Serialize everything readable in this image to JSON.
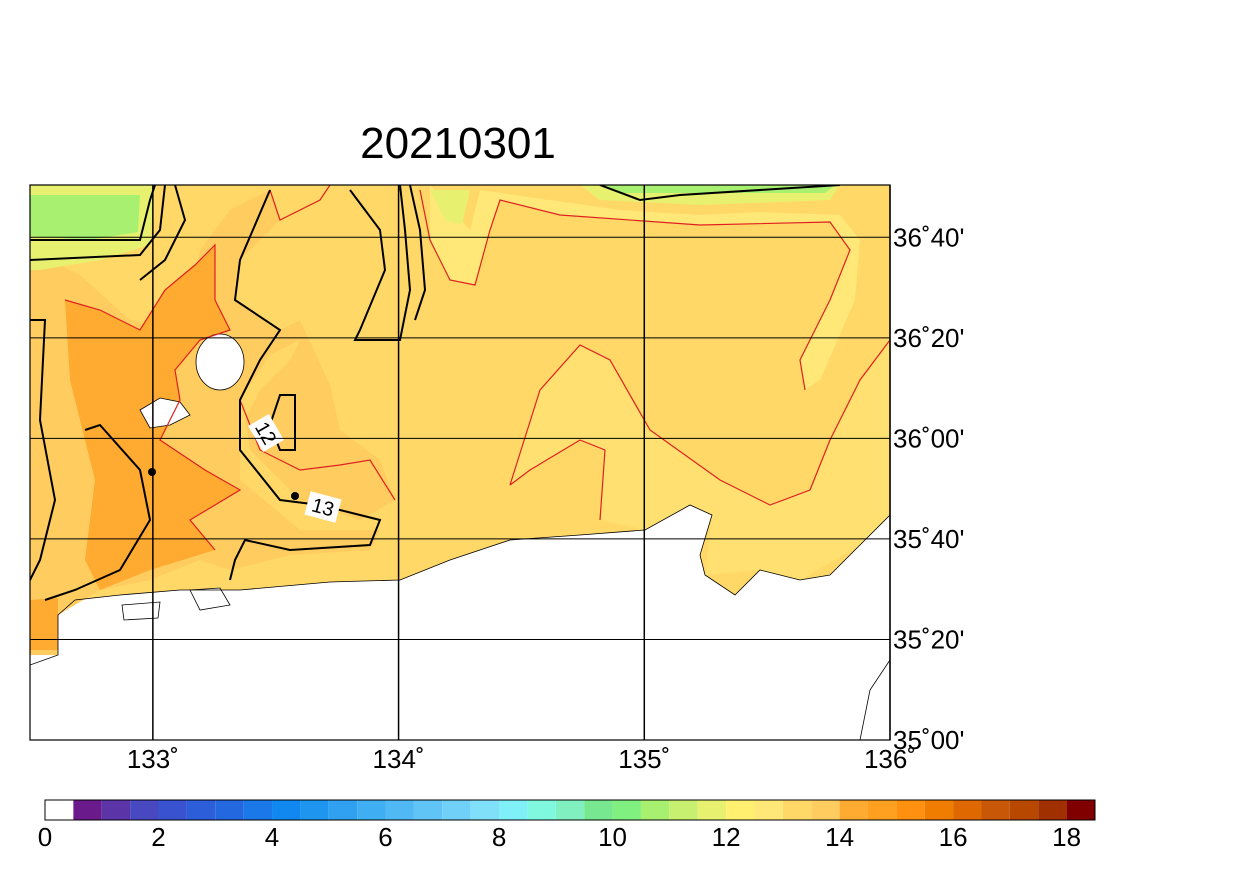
{
  "title": "20210301",
  "map": {
    "lon_range": [
      132.5,
      136
    ],
    "lat_range": [
      35,
      36.84
    ],
    "lon_ticks": [
      {
        "value": 133,
        "label": "133˚"
      },
      {
        "value": 134,
        "label": "134˚"
      },
      {
        "value": 135,
        "label": "135˚"
      },
      {
        "value": 136,
        "label": "136˚"
      }
    ],
    "lat_ticks": [
      {
        "value": 36.6667,
        "label": "36˚40'"
      },
      {
        "value": 36.3333,
        "label": "36˚20'"
      },
      {
        "value": 36,
        "label": "36˚00'"
      },
      {
        "value": 35.6667,
        "label": "35˚40'"
      },
      {
        "value": 35.3333,
        "label": "35˚20'"
      },
      {
        "value": 35,
        "label": "35˚00'"
      }
    ],
    "contour_labels": [
      "12",
      "13"
    ]
  },
  "colorbar": {
    "range": [
      0,
      18.5
    ],
    "ticks": [
      0,
      2,
      4,
      6,
      8,
      10,
      12,
      14,
      16,
      18
    ],
    "colors": [
      "#ffffff",
      "#6a1a8a",
      "#5b35a8",
      "#4848c0",
      "#3852d0",
      "#2b5ed8",
      "#2468e0",
      "#1a78e8",
      "#1088f0",
      "#1e96f0",
      "#30a0f0",
      "#40aef2",
      "#50b8f4",
      "#60c4f6",
      "#70d0f8",
      "#80e0fa",
      "#80f0f8",
      "#80f8e0",
      "#80f0c0",
      "#78e890",
      "#80f080",
      "#a8f070",
      "#c8f070",
      "#e8f070",
      "#fff070",
      "#ffe878",
      "#ffd868",
      "#ffcc60",
      "#ffaa30",
      "#ffa020",
      "#ff9010",
      "#f07c00",
      "#e06800",
      "#c85808",
      "#b84800",
      "#a03000",
      "#800000"
    ]
  }
}
